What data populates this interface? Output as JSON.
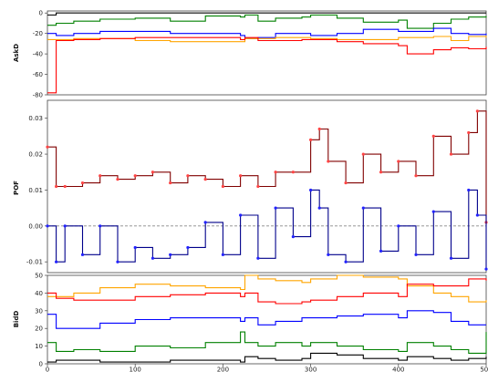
{
  "chart_data": [
    {
      "type": "line",
      "ylabel": "AskD",
      "ylim": [
        -80,
        2
      ],
      "yticks": [
        0,
        -20,
        -40,
        -60,
        -80
      ],
      "x": [
        0,
        10,
        30,
        60,
        100,
        140,
        180,
        220,
        225,
        240,
        260,
        290,
        300,
        330,
        360,
        400,
        410,
        440,
        460,
        480,
        500
      ],
      "series": [
        {
          "color": "#000000",
          "values": [
            -2,
            0,
            0,
            0,
            0,
            0,
            0,
            0,
            0,
            0,
            0,
            0,
            0,
            0,
            0,
            0,
            0,
            0,
            0,
            0,
            0
          ]
        },
        {
          "color": "#008000",
          "values": [
            -12,
            -10,
            -8,
            -6,
            -5,
            -8,
            -3,
            -4,
            -2,
            -8,
            -5,
            -4,
            -2,
            -5,
            -9,
            -7,
            -15,
            -10,
            -6,
            -4,
            -3
          ]
        },
        {
          "color": "#0000ff",
          "values": [
            -20,
            -22,
            -20,
            -18,
            -18,
            -20,
            -20,
            -22,
            -25,
            -24,
            -20,
            -20,
            -22,
            -20,
            -16,
            -18,
            -18,
            -15,
            -20,
            -21,
            -20
          ]
        },
        {
          "color": "#ffa500",
          "values": [
            -26,
            -26,
            -25,
            -25,
            -27,
            -28,
            -28,
            -28,
            -25,
            -25,
            -24,
            -24,
            -25,
            -26,
            -26,
            -24,
            -24,
            -23,
            -27,
            -23,
            -24
          ]
        },
        {
          "color": "#ff0000",
          "values": [
            -78,
            -27,
            -26,
            -25,
            -24,
            -24,
            -24,
            -26,
            -24,
            -27,
            -27,
            -26,
            -26,
            -28,
            -30,
            -32,
            -40,
            -36,
            -34,
            -35,
            -33
          ]
        }
      ]
    },
    {
      "type": "line",
      "ylabel": "POF",
      "ylim": [
        -0.013,
        0.035
      ],
      "yticks": [
        0.03,
        0.02,
        0.01,
        0.0,
        -0.01
      ],
      "ytick_labels": [
        "0.03",
        "0.02",
        "0.01",
        "0.00",
        "-0.01"
      ],
      "reference_line": 0.0,
      "x": [
        0,
        10,
        20,
        40,
        60,
        80,
        100,
        120,
        140,
        160,
        180,
        200,
        220,
        240,
        260,
        280,
        300,
        310,
        320,
        340,
        360,
        380,
        400,
        420,
        440,
        460,
        480,
        490,
        500
      ],
      "series": [
        {
          "color": "#800000",
          "values": [
            0.022,
            0.011,
            0.011,
            0.012,
            0.014,
            0.013,
            0.014,
            0.015,
            0.012,
            0.014,
            0.013,
            0.011,
            0.014,
            0.011,
            0.015,
            0.015,
            0.024,
            0.027,
            0.018,
            0.012,
            0.02,
            0.015,
            0.018,
            0.014,
            0.025,
            0.02,
            0.026,
            0.032,
            0.001
          ]
        },
        {
          "color": "#00008b",
          "values": [
            0.0,
            -0.01,
            0.0,
            -0.008,
            0.0,
            -0.01,
            -0.006,
            -0.009,
            -0.008,
            -0.006,
            0.001,
            -0.008,
            0.003,
            -0.009,
            0.005,
            -0.003,
            0.01,
            0.005,
            -0.008,
            -0.01,
            0.005,
            -0.007,
            0.0,
            -0.008,
            0.004,
            -0.009,
            0.01,
            0.003,
            -0.012
          ]
        }
      ]
    },
    {
      "type": "line",
      "ylabel": "BidD",
      "ylim": [
        0,
        50
      ],
      "yticks": [
        0,
        10,
        20,
        30,
        40,
        50
      ],
      "xlim": [
        0,
        500
      ],
      "xticks": [
        0,
        100,
        200,
        300,
        400,
        500
      ],
      "x": [
        0,
        10,
        30,
        60,
        100,
        140,
        180,
        220,
        225,
        240,
        260,
        290,
        300,
        330,
        360,
        400,
        410,
        440,
        460,
        480,
        500
      ],
      "series": [
        {
          "color": "#ffa500",
          "values": [
            38,
            38,
            40,
            43,
            45,
            44,
            43,
            42,
            50,
            48,
            47,
            46,
            48,
            50,
            49,
            48,
            44,
            40,
            38,
            35,
            36
          ]
        },
        {
          "color": "#ff0000",
          "values": [
            40,
            37,
            36,
            36,
            38,
            39,
            40,
            38,
            40,
            35,
            34,
            35,
            36,
            38,
            40,
            38,
            45,
            44,
            44,
            48,
            47
          ]
        },
        {
          "color": "#0000ff",
          "values": [
            28,
            20,
            20,
            23,
            25,
            26,
            26,
            24,
            26,
            22,
            24,
            26,
            26,
            27,
            28,
            26,
            30,
            29,
            24,
            22,
            22
          ]
        },
        {
          "color": "#008000",
          "values": [
            12,
            7,
            8,
            7,
            10,
            9,
            12,
            18,
            12,
            10,
            12,
            10,
            12,
            10,
            8,
            7,
            12,
            10,
            8,
            6,
            18
          ]
        },
        {
          "color": "#000000",
          "values": [
            1,
            2,
            2,
            1,
            1,
            2,
            2,
            1,
            4,
            3,
            2,
            3,
            6,
            5,
            3,
            2,
            4,
            3,
            2,
            3,
            4
          ]
        }
      ]
    }
  ]
}
